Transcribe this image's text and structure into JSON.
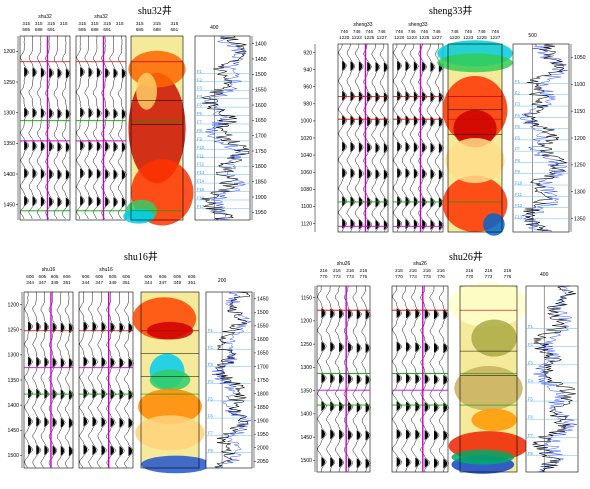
{
  "panels": [
    {
      "id": "shu32",
      "title": "shu32井",
      "track_labels": [
        "shu32",
        "shu32"
      ],
      "trace_labels": {
        "t1": [
          [
            "315",
            "315",
            "315",
            "315"
          ],
          [
            "685",
            "688",
            "691",
            ""
          ]
        ],
        "t2": [
          [
            "315",
            "315",
            "315",
            "315"
          ],
          [
            "685",
            "688",
            "691",
            ""
          ]
        ],
        "t3": [
          [
            "315",
            "315",
            "315"
          ],
          [
            "685",
            "688",
            "691"
          ]
        ]
      },
      "log_scale_label": "400",
      "left_depth_ticks": [
        "1200",
        "1250",
        "1300",
        "1350",
        "1400",
        "1450"
      ],
      "right_depth_ticks": [
        "1400",
        "1450",
        "1500",
        "1550",
        "1600",
        "1650",
        "1700",
        "1750",
        "1800",
        "1850",
        "1900",
        "1950"
      ],
      "layer_labels": [
        "F1",
        "F2",
        "F3",
        "F4",
        "F5",
        "F6",
        "F7",
        "F8",
        "F9",
        "F10",
        "F11",
        "F12",
        "F13",
        "F14",
        "F15",
        "F16",
        "F17"
      ]
    },
    {
      "id": "sheng33",
      "title": "sheng33井",
      "track_labels": [
        "sheng33",
        "sheng33"
      ],
      "trace_labels": {
        "t1": [
          [
            "746",
            "746",
            "746",
            "746"
          ],
          [
            "1220",
            "1223",
            "1225",
            "1227"
          ]
        ],
        "t2": [
          [
            "746",
            "746",
            "746",
            "746"
          ],
          [
            "1220",
            "1223",
            "1225",
            "1227"
          ]
        ],
        "t3": [
          [
            "746",
            "746",
            "746",
            "746"
          ],
          [
            "1220",
            "1223",
            "1225",
            "1227"
          ]
        ]
      },
      "log_scale_label": "500",
      "left_depth_ticks": [
        "920",
        "940",
        "960",
        "980",
        "1000",
        "1020",
        "1040",
        "1060",
        "1080",
        "1100",
        "1120"
      ],
      "right_depth_ticks": [
        "1050",
        "1100",
        "1150",
        "1200",
        "1250",
        "1300",
        "1350"
      ],
      "layer_labels": [
        "F1",
        "F2",
        "F3",
        "F4",
        "F5",
        "F6",
        "F7",
        "F8",
        "F9",
        "F10",
        "F11",
        "F12",
        "F13"
      ]
    },
    {
      "id": "shu16",
      "title": "shu16井",
      "track_labels": [
        "shu16",
        "shu16"
      ],
      "trace_labels": {
        "t1": [
          [
            "606",
            "605",
            "605",
            "606"
          ],
          [
            "344",
            "347",
            "349",
            "351"
          ]
        ],
        "t2": [
          [
            "606",
            "605",
            "605",
            "606"
          ],
          [
            "344",
            "347",
            "349",
            "351"
          ]
        ],
        "t3": [
          [
            "606",
            "606",
            "605",
            "606"
          ],
          [
            "344",
            "347",
            "349",
            "351"
          ]
        ]
      },
      "log_scale_label": "200",
      "left_depth_ticks": [
        "1200",
        "1250",
        "1300",
        "1350",
        "1400",
        "1450",
        "1500"
      ],
      "right_depth_ticks": [
        "1450",
        "1500",
        "1550",
        "1600",
        "1650",
        "1700",
        "1750",
        "1800",
        "1850",
        "1900",
        "1950",
        "2000",
        "2050"
      ],
      "layer_labels": [
        "F1",
        "F2",
        "F3",
        "F4",
        "F5",
        "F6",
        "F7",
        "F8"
      ]
    },
    {
      "id": "shu26",
      "title": "shu26井",
      "track_labels": [
        "shu26",
        "shu26"
      ],
      "trace_labels": {
        "t1": [
          [
            "216",
            "216",
            "216",
            "216"
          ],
          [
            "770",
            "773",
            "773",
            "776"
          ]
        ],
        "t2": [
          [
            "216",
            "216",
            "216",
            "216"
          ],
          [
            "770",
            "773",
            "773",
            "776"
          ]
        ],
        "t3": [
          [
            "216",
            "216",
            "216"
          ],
          [
            "770",
            "773",
            "776"
          ]
        ]
      },
      "log_scale_label": "400",
      "left_depth_ticks": [
        "1150",
        "1200",
        "1250",
        "1300",
        "1350",
        "1400",
        "1450",
        "1500"
      ],
      "right_depth_ticks": [],
      "layer_labels": [
        "F1",
        "F2",
        "F3",
        "F4",
        "F5",
        "F6",
        "F7",
        "F8"
      ]
    }
  ],
  "colors": {
    "trace_fill": "#000000",
    "well_marker": "#cc00cc",
    "horizon_green": "#00a000",
    "horizon_red": "#cc0000",
    "log_black": "#000000",
    "log_blue": "#3355ff",
    "layer_line": "#66bbff"
  }
}
